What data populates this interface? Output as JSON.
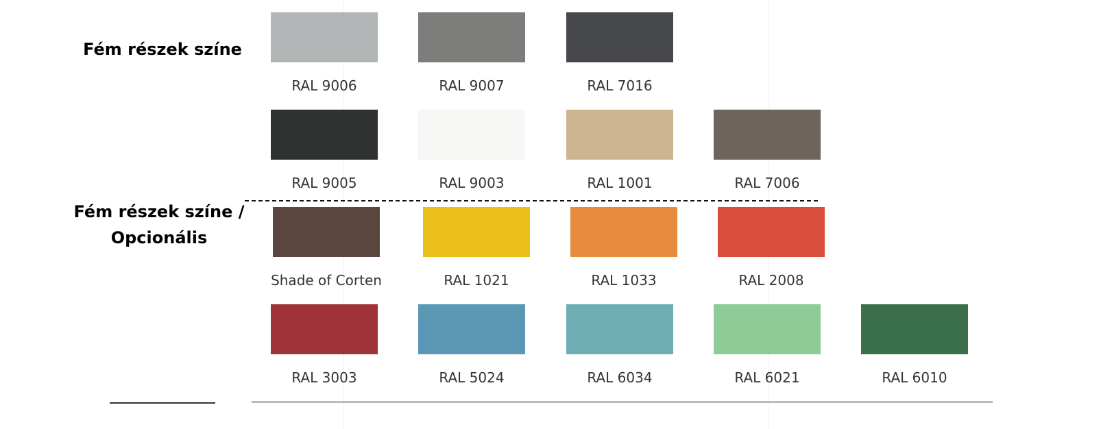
{
  "sections": [
    {
      "title": [
        "Fém részek színe"
      ],
      "rows": [
        [
          {
            "label": "RAL 9006",
            "color": "#b1b5b6"
          },
          {
            "label": "RAL 9007",
            "color": "#7d7d7b"
          },
          {
            "label": "RAL 7016",
            "color": "#47484b"
          }
        ],
        [
          {
            "label": "RAL 9005",
            "color": "#303131"
          },
          {
            "label": "RAL 9003",
            "color": "#f7f8f5"
          },
          {
            "label": "RAL 1001",
            "color": "#cdb590"
          },
          {
            "label": "RAL 7006",
            "color": "#6d645b"
          }
        ]
      ]
    },
    {
      "title": [
        "Fém részek színe /",
        "Opcionális"
      ],
      "rows": [
        [
          {
            "label": "Shade of Corten",
            "color": "#5b4640"
          },
          {
            "label": "RAL 1021",
            "color": "#eabf1a"
          },
          {
            "label": "RAL 1033",
            "color": "#e78c3e"
          },
          {
            "label": "RAL 2008",
            "color": "#da4c3e"
          }
        ],
        [
          {
            "label": "RAL 3003",
            "color": "#a0323a"
          },
          {
            "label": "RAL 5024",
            "color": "#5c98b5"
          },
          {
            "label": "RAL 6034",
            "color": "#70aeb6"
          },
          {
            "label": "RAL 6021",
            "color": "#8dcc96"
          },
          {
            "label": "RAL 6010",
            "color": "#3b714a"
          }
        ]
      ]
    }
  ]
}
